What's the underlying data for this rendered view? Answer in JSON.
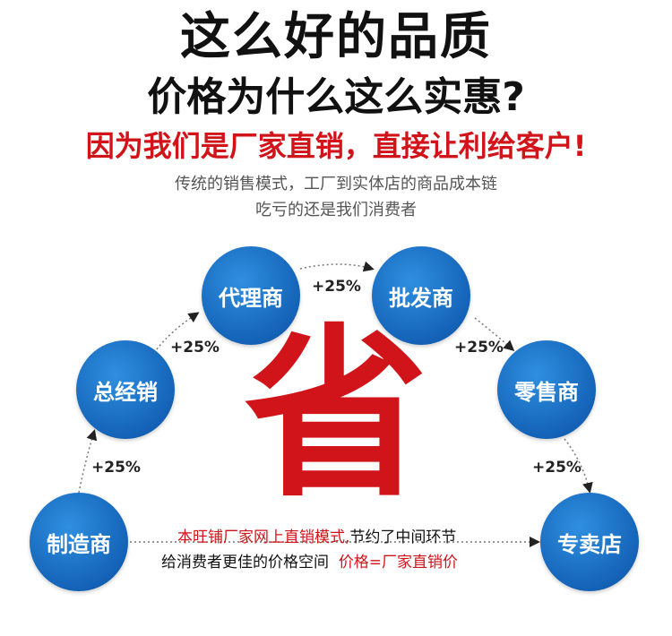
{
  "headline": {
    "line1": "这么好的品质",
    "line2": "价格为什么这么实惠?",
    "line3": "因为我们是厂家直销，直接让利给客户!"
  },
  "subtitle": {
    "line1": "传统的销售模式，工厂到实体店的商品成本链",
    "line2": "吃亏的还是我们消费者"
  },
  "chain": [
    {
      "label": "制造商"
    },
    {
      "label": "总经销"
    },
    {
      "label": "代理商"
    },
    {
      "label": "批发商"
    },
    {
      "label": "零售商"
    },
    {
      "label": "专卖店"
    }
  ],
  "markup": "+25%",
  "center_char": "省",
  "bottom": {
    "red1": "本旺铺厂家网上直销模式,",
    "black1": "节约了中间环节",
    "black2": "给消费者更佳的价格空间",
    "red2": "价格=厂家直销价"
  },
  "colors": {
    "accent_red": "#d0141a",
    "circle_blue": "#1463b8"
  }
}
